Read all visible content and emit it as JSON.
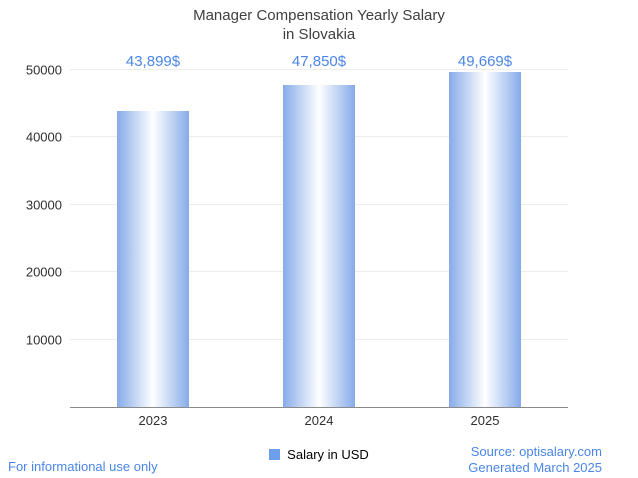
{
  "title": {
    "line1": "Manager Compensation Yearly Salary",
    "line2": "in Slovakia"
  },
  "chart_data": {
    "type": "bar",
    "title": "Manager Compensation Yearly Salary in Slovakia",
    "categories": [
      "2023",
      "2024",
      "2025"
    ],
    "values": [
      43899,
      47850,
      49669
    ],
    "value_labels": [
      "43,899$",
      "47,850$",
      "49,669$"
    ],
    "xlabel": "",
    "ylabel": "",
    "ylim": [
      0,
      50000
    ],
    "yticks": [
      10000,
      20000,
      30000,
      40000,
      50000
    ],
    "grid": true,
    "legend_position": "bottom",
    "legend": [
      {
        "label": "Salary in USD",
        "color": "#6d9eeb"
      }
    ],
    "bar_gradient": [
      "#86abe9",
      "#ffffff"
    ]
  },
  "footer": {
    "left": "For informational use only",
    "source": "Source: optisalary.com",
    "generated": "Generated March 2025"
  },
  "colors": {
    "accent_blue": "#4a86e8",
    "legend_swatch": "#6d9eeb",
    "bar_edge": "#86abe9",
    "bar_center": "#ffffff",
    "title_text": "#404040",
    "axis_text": "#2f2f2f",
    "gridline": "#ececec",
    "baseline": "#8a8a8a"
  }
}
